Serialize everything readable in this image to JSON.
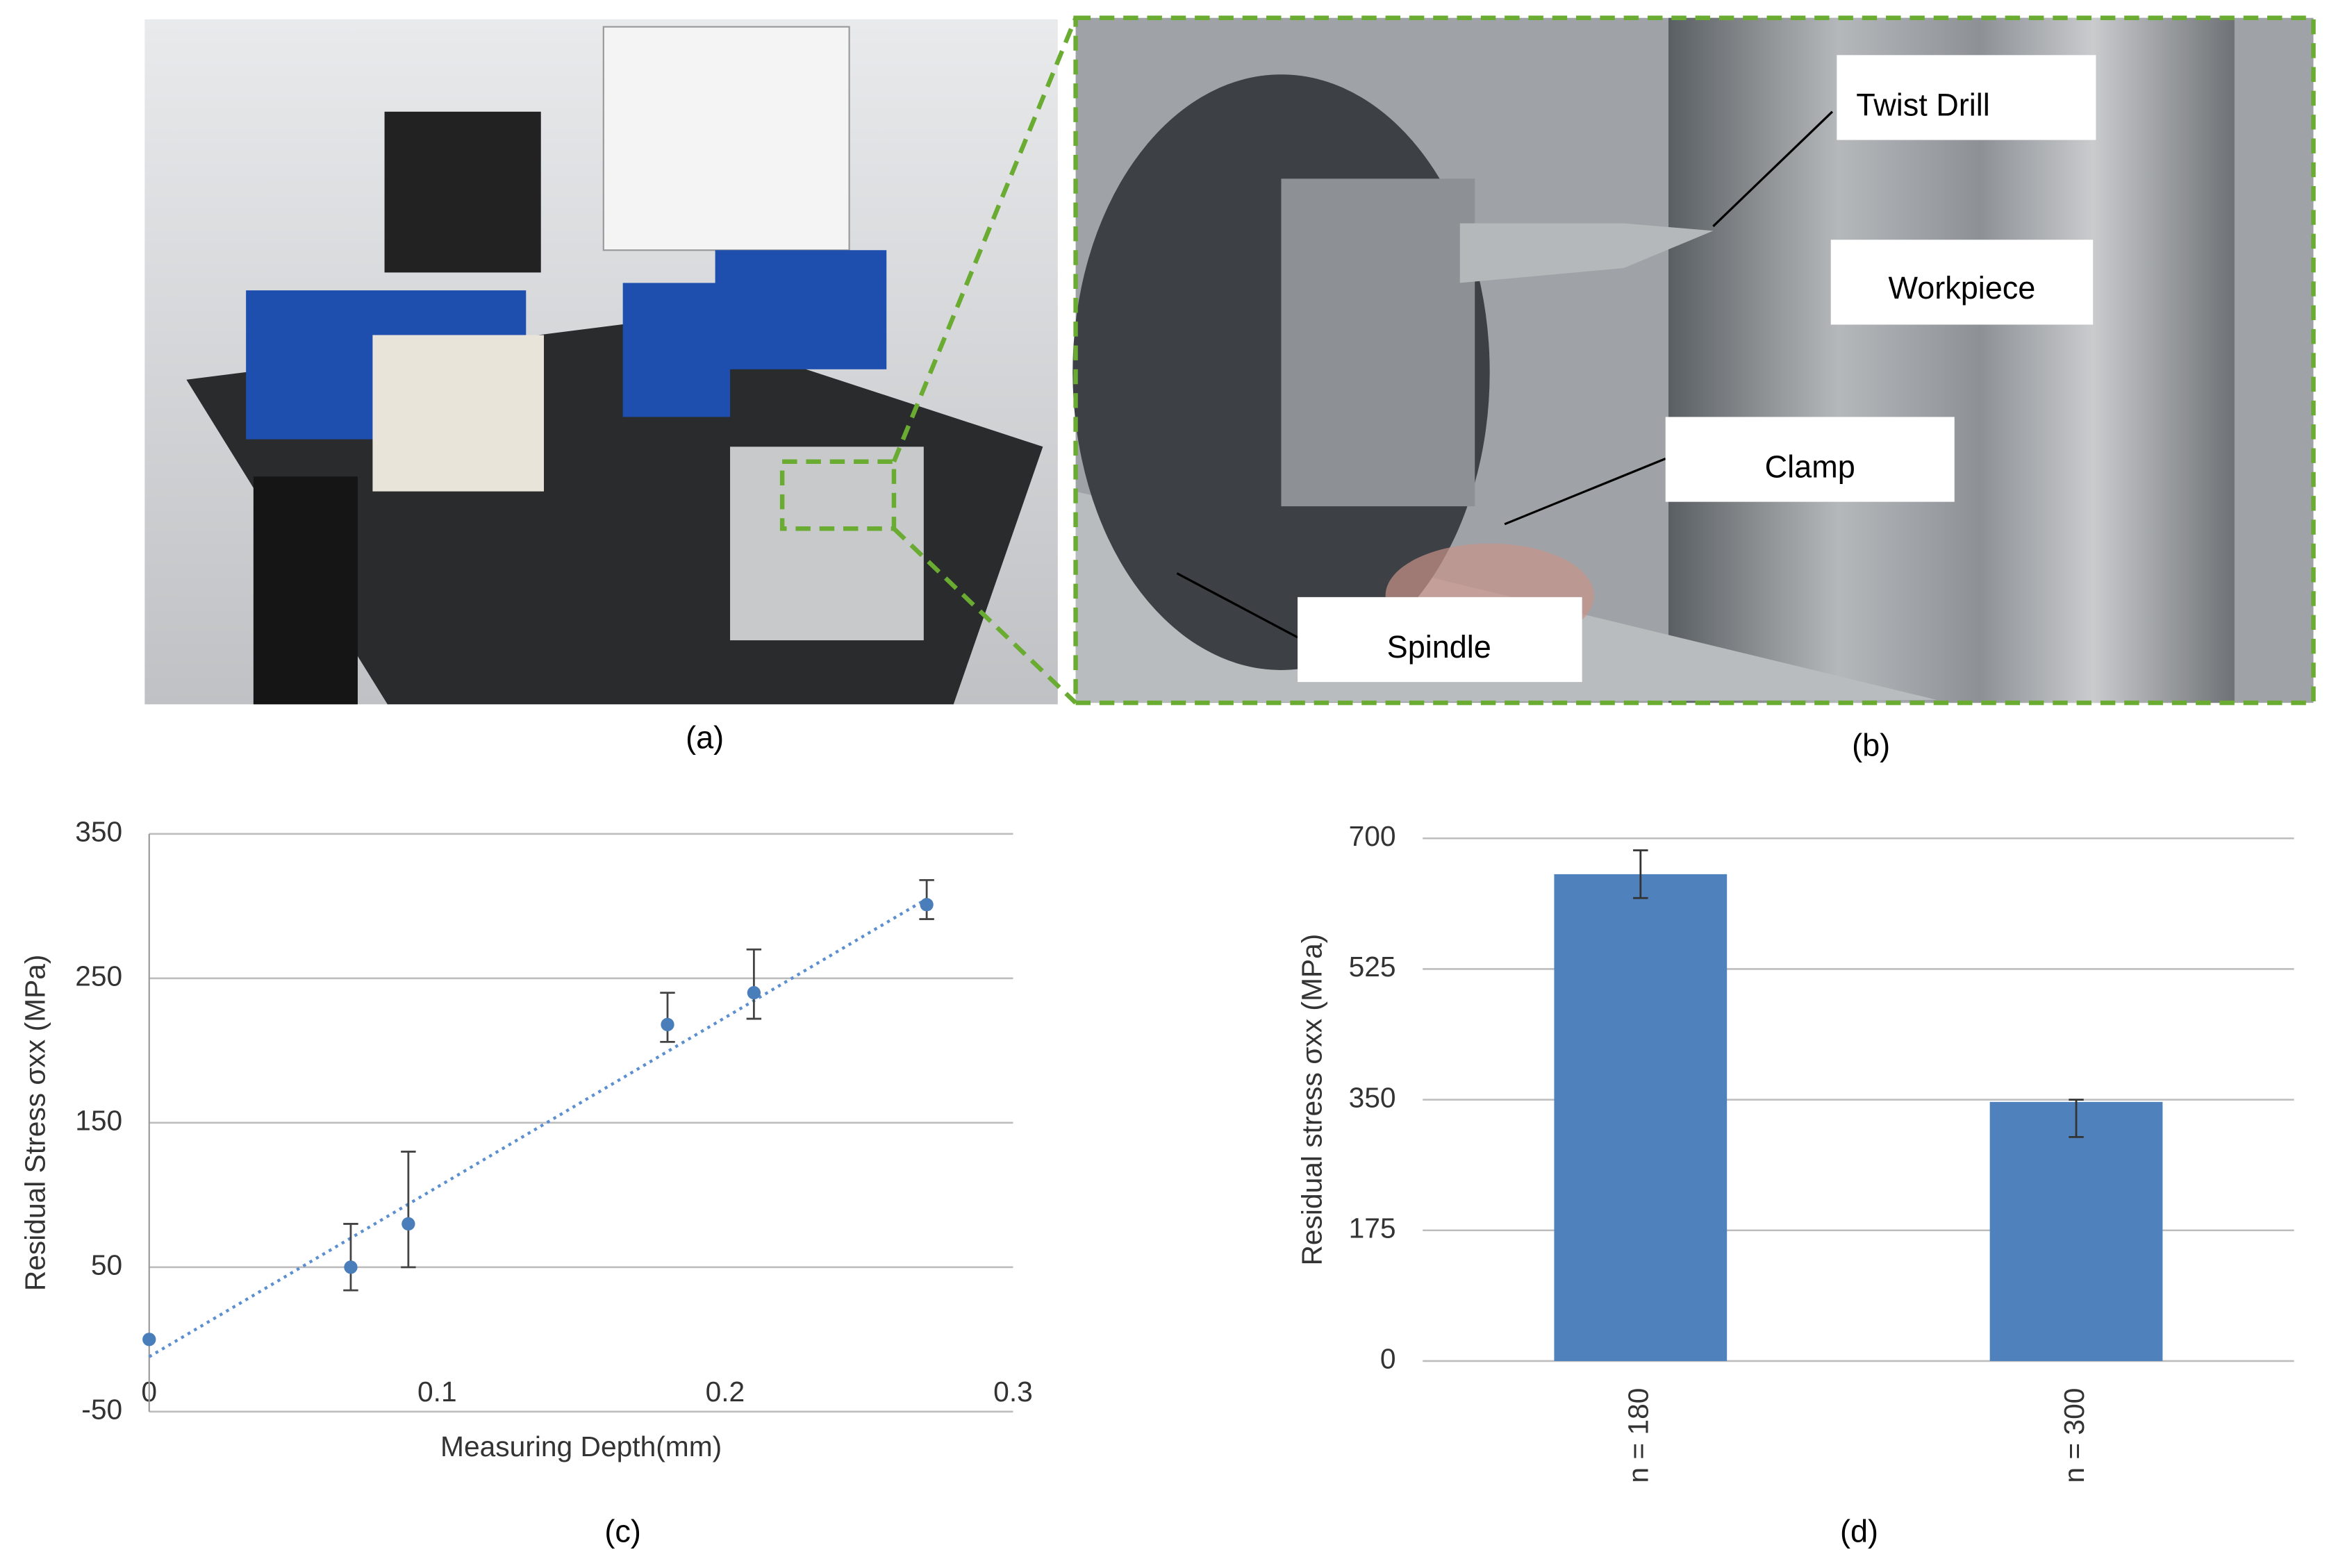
{
  "panels": {
    "a": "(a)",
    "b": "(b)",
    "c": "(c)",
    "d": "(d)"
  },
  "photo_labels": {
    "twist_drill": "Twist Drill",
    "workpiece": "Workpiece",
    "clamp": "Clamp",
    "spindle": "Spindle"
  },
  "chart_data": [
    {
      "type": "scatter",
      "xlabel": "Measuring Depth(mm)",
      "ylabel": "Residual Stress σxx (MPa)",
      "x": [
        0,
        0.07,
        0.09,
        0.18,
        0.21,
        0.27
      ],
      "values": [
        0,
        50,
        80,
        218,
        240,
        301
      ],
      "yerr_minus": [
        0,
        16,
        30,
        12,
        18,
        10
      ],
      "yerr_plus": [
        0,
        30,
        50,
        22,
        30,
        17
      ],
      "color": "#4a7ebb",
      "trendline": {
        "x": [
          0,
          0.27
        ],
        "values": [
          -12,
          305
        ],
        "color": "#5b8fd0"
      },
      "xlim": [
        0,
        0.3
      ],
      "xticks": [
        0,
        0.1,
        0.2,
        0.3
      ],
      "ylim": [
        -50,
        350
      ],
      "yticks": [
        -50,
        50,
        150,
        250,
        350
      ],
      "grid": true
    },
    {
      "type": "bar",
      "ylabel": "Residual stress σxx (MPa)",
      "categories": [
        "n = 180",
        "n = 300"
      ],
      "values": [
        652,
        347
      ],
      "yerr_minus": [
        32,
        47
      ],
      "yerr_plus": [
        32,
        3
      ],
      "color": "#4f81bd",
      "ylim": [
        0,
        700
      ],
      "yticks": [
        0,
        175,
        350,
        525,
        700
      ],
      "grid": true
    }
  ]
}
